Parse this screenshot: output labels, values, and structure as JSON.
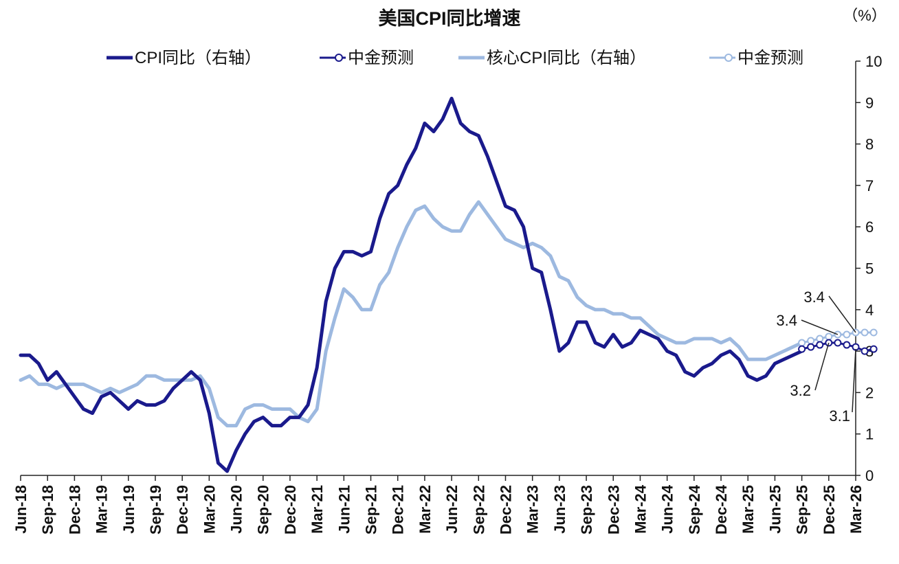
{
  "chart_data": {
    "type": "line",
    "title": "美国CPI同比增速",
    "unit": "（%）",
    "ylim": [
      0,
      10
    ],
    "yticks": [
      "0",
      "1",
      "2",
      "3",
      "4",
      "5",
      "6",
      "7",
      "8",
      "9",
      "10"
    ],
    "grid": false,
    "legend_position": "top",
    "x_start": "2018-06",
    "x_end": "2026-03",
    "xtick_labels": [
      "Jun-18",
      "Sep-18",
      "Dec-18",
      "Mar-19",
      "Jun-19",
      "Sep-19",
      "Dec-19",
      "Mar-20",
      "Jun-20",
      "Sep-20",
      "Dec-20",
      "Mar-21",
      "Jun-21",
      "Sep-21",
      "Dec-21",
      "Mar-22",
      "Jun-22",
      "Sep-22",
      "Dec-22",
      "Mar-23",
      "Jun-23",
      "Sep-23",
      "Dec-23",
      "Mar-24",
      "Jun-24",
      "Sep-24",
      "Dec-24",
      "Mar-25",
      "Jun-25",
      "Sep-25",
      "Dec-25",
      "Mar-26"
    ],
    "legend": [
      {
        "label": "CPI同比（右轴）",
        "style": "line",
        "color": "#1a1a8c"
      },
      {
        "label": "中金预测",
        "style": "marker-line",
        "color": "#1a1a8c"
      },
      {
        "label": "核心CPI同比（右轴）",
        "style": "line",
        "color": "#9db9e0"
      },
      {
        "label": "中金预测",
        "style": "marker-line",
        "color": "#9db9e0"
      }
    ],
    "series": [
      {
        "name": "CPI同比（右轴）",
        "color": "#1a1a8c",
        "start": "2018-06",
        "values": [
          2.9,
          2.9,
          2.7,
          2.3,
          2.5,
          2.2,
          1.9,
          1.6,
          1.5,
          1.9,
          2.0,
          1.8,
          1.6,
          1.8,
          1.7,
          1.7,
          1.8,
          2.1,
          2.3,
          2.5,
          2.3,
          1.5,
          0.3,
          0.1,
          0.6,
          1.0,
          1.3,
          1.4,
          1.2,
          1.2,
          1.4,
          1.4,
          1.7,
          2.6,
          4.2,
          5.0,
          5.4,
          5.4,
          5.3,
          5.4,
          6.2,
          6.8,
          7.0,
          7.5,
          7.9,
          8.5,
          8.3,
          8.6,
          9.1,
          8.5,
          8.3,
          8.2,
          7.7,
          7.1,
          6.5,
          6.4,
          6.0,
          5.0,
          4.9,
          4.0,
          3.0,
          3.2,
          3.7,
          3.7,
          3.2,
          3.1,
          3.4,
          3.1,
          3.2,
          3.5,
          3.4,
          3.3,
          3.0,
          2.9,
          2.5,
          2.4,
          2.6,
          2.7,
          2.9,
          3.0,
          2.8,
          2.4,
          2.3,
          2.4,
          2.7,
          2.8,
          2.9,
          3.0
        ]
      },
      {
        "name": "中金预测",
        "color": "#1a1a8c",
        "markers": true,
        "start": "2025-09",
        "values": [
          3.05,
          3.1,
          3.15,
          3.2,
          3.2,
          3.15,
          3.1,
          3.0,
          3.05
        ]
      },
      {
        "name": "核心CPI同比（右轴）",
        "color": "#9db9e0",
        "start": "2018-06",
        "values": [
          2.3,
          2.4,
          2.2,
          2.2,
          2.1,
          2.2,
          2.2,
          2.2,
          2.1,
          2.0,
          2.1,
          2.0,
          2.1,
          2.2,
          2.4,
          2.4,
          2.3,
          2.3,
          2.3,
          2.3,
          2.4,
          2.1,
          1.4,
          1.2,
          1.2,
          1.6,
          1.7,
          1.7,
          1.6,
          1.6,
          1.6,
          1.4,
          1.3,
          1.6,
          3.0,
          3.8,
          4.5,
          4.3,
          4.0,
          4.0,
          4.6,
          4.9,
          5.5,
          6.0,
          6.4,
          6.5,
          6.2,
          6.0,
          5.9,
          5.9,
          6.3,
          6.6,
          6.3,
          6.0,
          5.7,
          5.6,
          5.5,
          5.6,
          5.5,
          5.3,
          4.8,
          4.7,
          4.3,
          4.1,
          4.0,
          4.0,
          3.9,
          3.9,
          3.8,
          3.8,
          3.6,
          3.4,
          3.3,
          3.2,
          3.2,
          3.3,
          3.3,
          3.3,
          3.2,
          3.3,
          3.1,
          2.8,
          2.8,
          2.8,
          2.9,
          3.0,
          3.1,
          3.2
        ]
      },
      {
        "name": "中金预测",
        "color": "#9db9e0",
        "markers": true,
        "start": "2025-09",
        "values": [
          3.2,
          3.25,
          3.3,
          3.35,
          3.4,
          3.4,
          3.45,
          3.45,
          3.45
        ]
      }
    ],
    "annotations": [
      "3.4",
      "3.4",
      "3.2",
      "3.1"
    ]
  }
}
